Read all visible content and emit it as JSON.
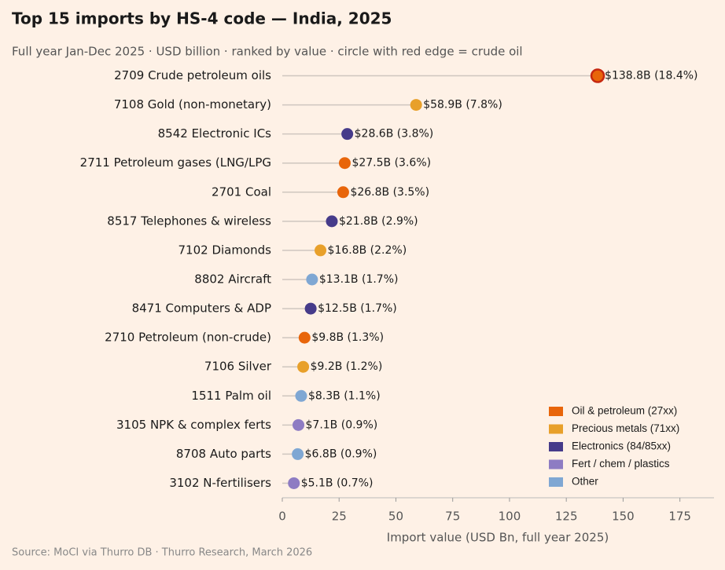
{
  "chart_data": {
    "type": "lollipop",
    "title": "Top 15 imports by HS-4 code — India, 2025",
    "subtitle": "Full year Jan-Dec 2025 · USD billion · ranked by value · circle with red edge = crude oil",
    "x_label": "Import value (USD Bn, full year 2025)",
    "source": "Source: MoCI via Thurro DB · Thurro Research, March 2026",
    "categories": [
      "2709  Crude petroleum oils",
      "7108  Gold (non-monetary)",
      "8542  Electronic ICs",
      "2711  Petroleum gases (LNG/LPG",
      "2701  Coal",
      "8517  Telephones & wireless",
      "7102  Diamonds",
      "8802  Aircraft",
      "8471  Computers & ADP",
      "2710  Petroleum (non-crude)",
      "7106  Silver",
      "1511  Palm oil",
      "3105  NPK & complex ferts",
      "8708  Auto parts",
      "3102  N-fertilisers"
    ],
    "series": [
      {
        "name": "Oil & petroleum (27xx)",
        "color": "#e8650a",
        "values": [
          138.8,
          null,
          null,
          27.5,
          26.8,
          null,
          null,
          null,
          null,
          9.8,
          null,
          null,
          null,
          null,
          null
        ],
        "value_labels": [
          "$138.8B  (18.4%)",
          null,
          null,
          "$27.5B  (3.6%)",
          "$26.8B  (3.5%)",
          null,
          null,
          null,
          null,
          "$9.8B  (1.3%)",
          null,
          null,
          null,
          null,
          null
        ]
      },
      {
        "name": "Precious metals (71xx)",
        "color": "#e8a02a",
        "values": [
          null,
          58.9,
          null,
          null,
          null,
          null,
          16.8,
          null,
          null,
          null,
          9.2,
          null,
          null,
          null,
          null
        ],
        "value_labels": [
          null,
          "$58.9B  (7.8%)",
          null,
          null,
          null,
          null,
          "$16.8B  (2.2%)",
          null,
          null,
          null,
          "$9.2B  (1.2%)",
          null,
          null,
          null,
          null
        ]
      },
      {
        "name": "Electronics (84/85xx)",
        "color": "#463b8a",
        "values": [
          null,
          null,
          28.6,
          null,
          null,
          21.8,
          null,
          null,
          12.5,
          null,
          null,
          null,
          null,
          null,
          null
        ],
        "value_labels": [
          null,
          null,
          "$28.6B  (3.8%)",
          null,
          null,
          "$21.8B  (2.9%)",
          null,
          null,
          "$12.5B  (1.7%)",
          null,
          null,
          null,
          null,
          null,
          null
        ]
      },
      {
        "name": "Fert / chem / plastics",
        "color": "#8e7cc3",
        "values": [
          null,
          null,
          null,
          null,
          null,
          null,
          null,
          null,
          null,
          null,
          null,
          null,
          7.1,
          null,
          5.1
        ],
        "value_labels": [
          null,
          null,
          null,
          null,
          null,
          null,
          null,
          null,
          null,
          null,
          null,
          null,
          "$7.1B  (0.9%)",
          null,
          "$5.1B  (0.7%)"
        ]
      },
      {
        "name": "Other",
        "color": "#7fa7d3",
        "values": [
          null,
          null,
          null,
          null,
          null,
          null,
          null,
          13.1,
          null,
          null,
          null,
          8.3,
          null,
          6.8,
          null
        ],
        "value_labels": [
          null,
          null,
          null,
          null,
          null,
          null,
          null,
          "$13.1B  (1.7%)",
          null,
          null,
          null,
          "$8.3B  (1.1%)",
          null,
          "$6.8B  (0.9%)",
          null
        ]
      }
    ],
    "highlight": {
      "category": 0,
      "edge_color": "#c62810"
    },
    "xlim": [
      0,
      190
    ],
    "xticks": [
      0,
      25,
      50,
      75,
      100,
      125,
      150,
      175
    ],
    "legend": "lower right",
    "grid": false
  }
}
